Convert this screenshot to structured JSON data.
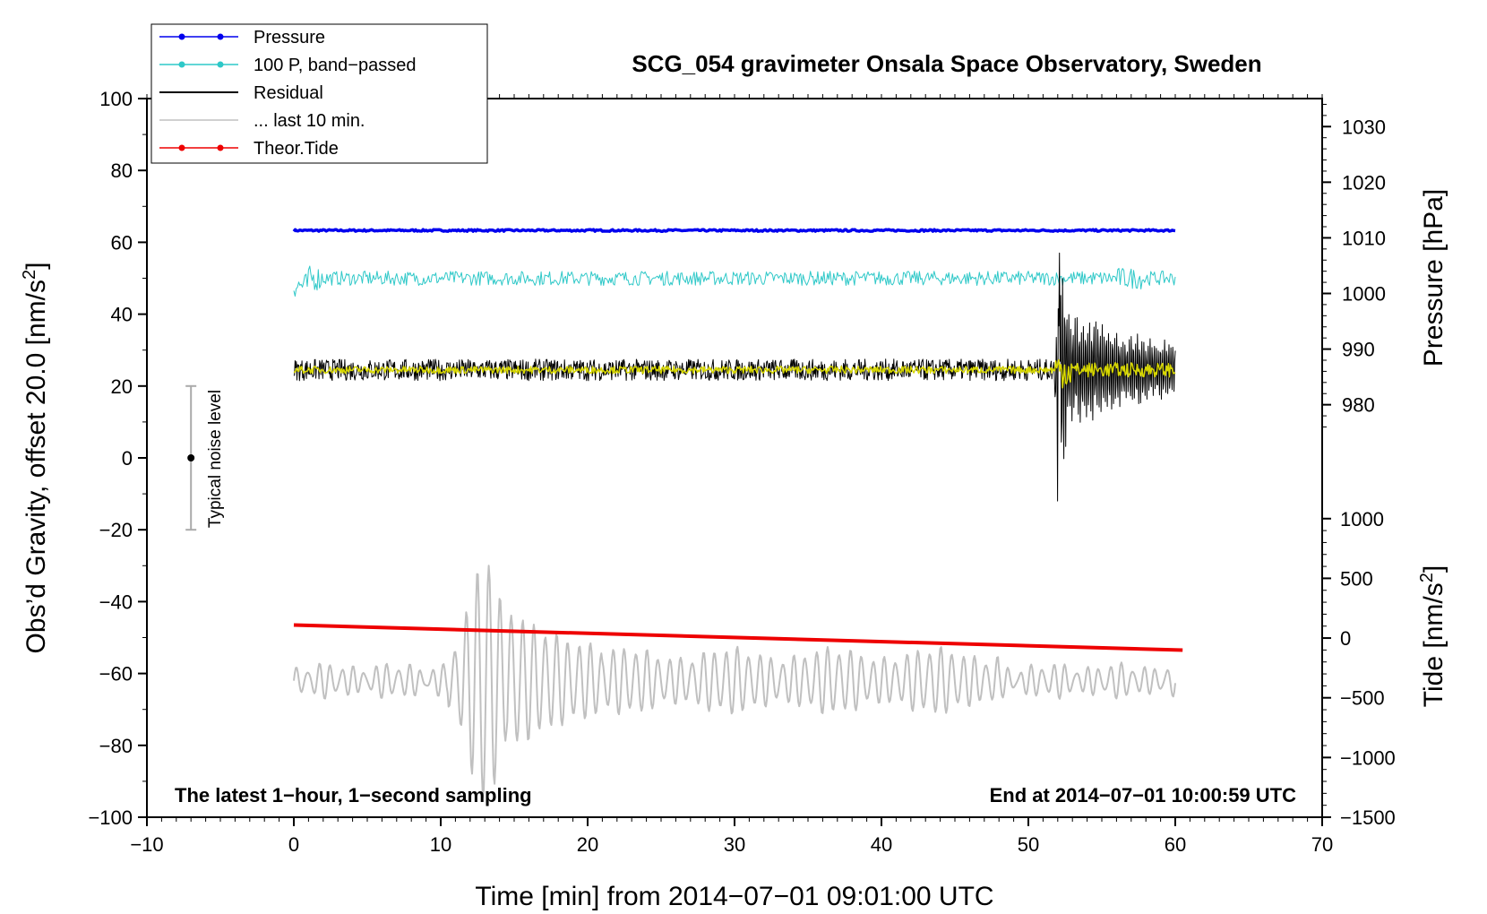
{
  "chart_data": {
    "type": "line",
    "title": "SCG_054 gravimeter Onsala Space Observatory, Sweden",
    "xlabel": "Time [min] from 2014−07−01 09:01:00 UTC",
    "ylabel_main": "Obs’d Gravity, offset 20.0 [nm/s",
    "ylabel_main_sup": "2",
    "ylabel_main_tail": "]",
    "ylabel_pressure": "Pressure [hPa]",
    "ylabel_tide": "Tide [nm/s",
    "ylabel_tide_sup": "2",
    "ylabel_tide_tail": "]",
    "xlim": [
      -10,
      70
    ],
    "ylim": [
      -100,
      100
    ],
    "x_ticks": [
      "−10",
      "0",
      "10",
      "20",
      "30",
      "40",
      "50",
      "60",
      "70"
    ],
    "x_tick_values": [
      -10,
      0,
      10,
      20,
      30,
      40,
      50,
      60,
      70
    ],
    "y_ticks": [
      "100",
      "80",
      "60",
      "40",
      "20",
      "0",
      "−20",
      "−40",
      "−60",
      "−80",
      "−100"
    ],
    "y_tick_values": [
      100,
      80,
      60,
      40,
      20,
      0,
      -20,
      -40,
      -60,
      -80,
      -100
    ],
    "pressure_ticks": [
      "1030",
      "1020",
      "1010",
      "1000",
      "990",
      "980"
    ],
    "pressure_tick_values": [
      1030,
      1020,
      1010,
      1000,
      990,
      980
    ],
    "pressure_axis_map": {
      "hpa": [
        980,
        1030
      ],
      "gravity": [
        14.8,
        92.2
      ]
    },
    "tide_ticks": [
      "1000",
      "500",
      "0",
      "−500",
      "−1000",
      "−1500"
    ],
    "tide_tick_values": [
      1000,
      500,
      0,
      -500,
      -1000,
      -1500
    ],
    "tide_axis_map": {
      "nm_s2": [
        -1500,
        1000
      ],
      "gravity": [
        -100,
        -16.9
      ]
    },
    "legend": [
      {
        "label": "Pressure",
        "color": "#0000ee",
        "marker": true
      },
      {
        "label": "100 P, band−passed",
        "color": "#2ec8c8",
        "marker": true
      },
      {
        "label": "Residual",
        "color": "#000000",
        "marker": false
      },
      {
        "label": "... last 10 min.",
        "color": "#c0c0c0",
        "marker": false
      },
      {
        "label": "Theor.Tide",
        "color": "#ee0000",
        "marker": true
      }
    ],
    "noise_indicator": {
      "label": "Typical noise level",
      "x": -7,
      "center": 0,
      "low": -20,
      "high": 20
    },
    "annotations": {
      "bottom_left": "The latest 1−hour, 1−second sampling",
      "bottom_right": "End at 2014−07−01 10:00:59 UTC"
    },
    "series": [
      {
        "name": "Pressure",
        "color": "#0000ee",
        "x_range": [
          0,
          60
        ],
        "level_gravity": 63.3,
        "level_hpa": 1010,
        "noise": 0.25
      },
      {
        "name": "100 P, band−passed",
        "color": "#2ec8c8",
        "x_range": [
          0,
          60
        ],
        "level_gravity": 50.0,
        "noise": 2.0
      },
      {
        "name": "Residual",
        "color": "#000000",
        "x_range": [
          0,
          60
        ],
        "level_gravity": 24.5,
        "noise": 3.0,
        "event_x": 52.0,
        "event_peak_high": 57.0,
        "event_peak_low": -12.0
      },
      {
        "name": "Residual (smoothed)",
        "color": "#d8d800",
        "x_range": [
          0,
          60
        ],
        "level_gravity": 24.5,
        "noise": 1.0
      },
      {
        "name": "... last 10 min.",
        "color": "#c0c0c0",
        "x_range": [
          0,
          60
        ],
        "level_gravity": -62.0,
        "noise": 4.0,
        "burst_x": [
          12.5,
          13.7
        ],
        "burst_max": -30.0,
        "burst_min": -98.0
      },
      {
        "name": "Theor.Tide",
        "color": "#ee0000",
        "x": [
          0,
          60.5
        ],
        "y": [
          -46.5,
          -53.5
        ]
      }
    ]
  }
}
